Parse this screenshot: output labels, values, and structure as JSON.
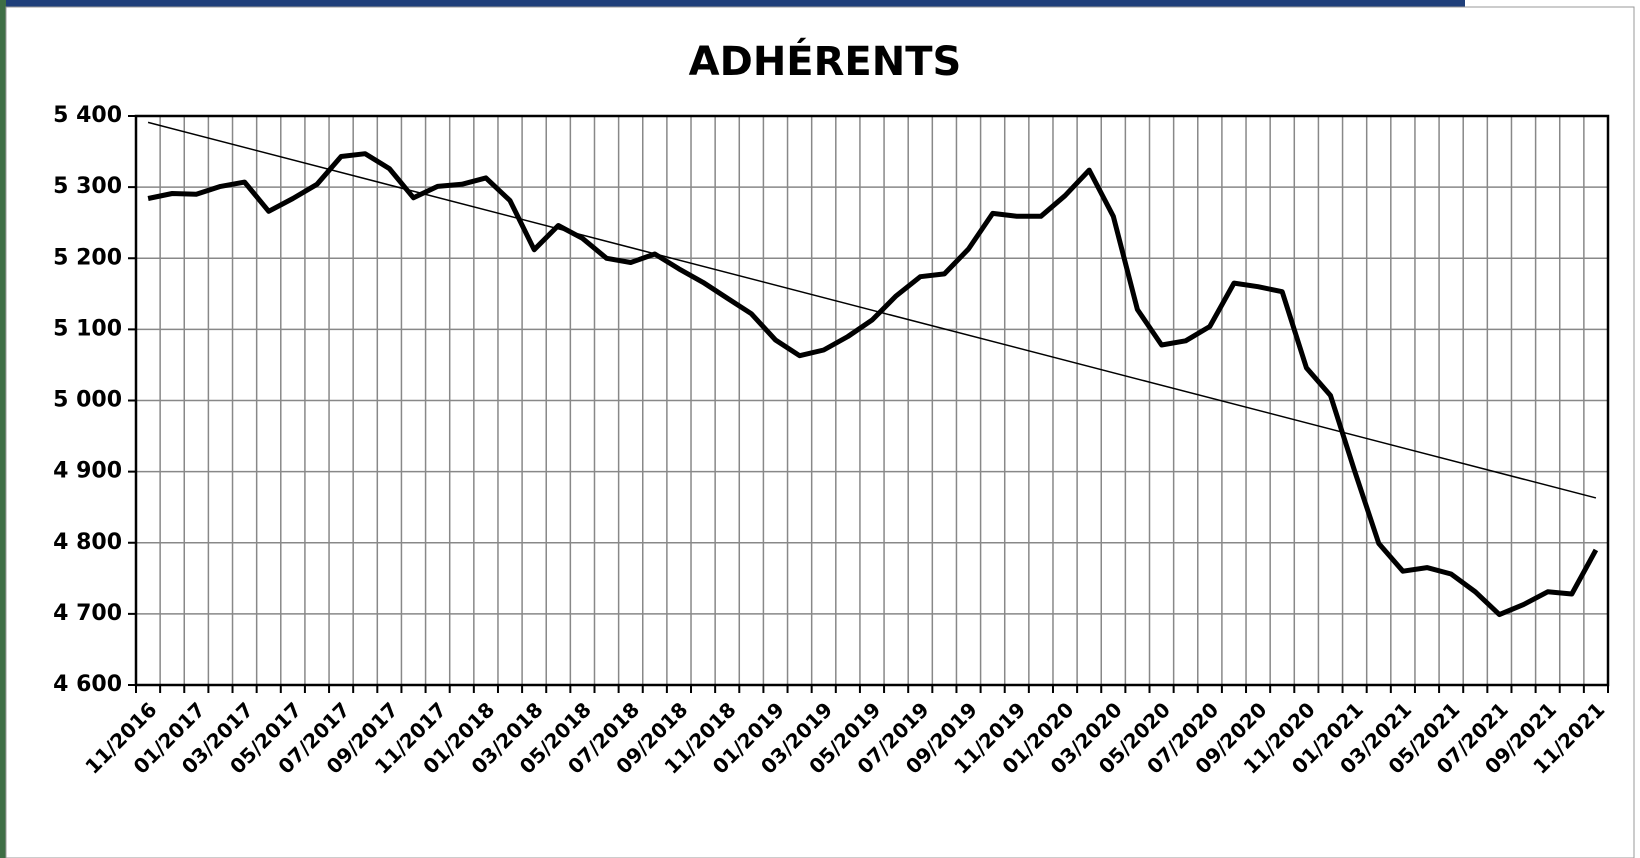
{
  "chart_data": {
    "type": "line",
    "title": "ADHÉRENTS",
    "categories": [
      "11/2016",
      null,
      "01/2017",
      null,
      "03/2017",
      null,
      "05/2017",
      null,
      "07/2017",
      null,
      "09/2017",
      null,
      "11/2017",
      null,
      "01/2018",
      null,
      "03/2018",
      null,
      "05/2018",
      null,
      "07/2018",
      null,
      "09/2018",
      null,
      "11/2018",
      null,
      "01/2019",
      null,
      "03/2019",
      null,
      "05/2019",
      null,
      "07/2019",
      null,
      "09/2019",
      null,
      "11/2019",
      null,
      "01/2020",
      null,
      "03/2020",
      null,
      "05/2020",
      null,
      "07/2020",
      null,
      "09/2020",
      null,
      "11/2020",
      null,
      "01/2021",
      null,
      "03/2021",
      null,
      "05/2021",
      null,
      "07/2021",
      null,
      "09/2021",
      null,
      "11/2021"
    ],
    "values": [
      5284,
      5291,
      5290,
      5301,
      5307,
      5266,
      5284,
      5304,
      5343,
      5347,
      5326,
      5285,
      5301,
      5304,
      5313,
      5281,
      5212,
      5246,
      5228,
      5200,
      5194,
      5206,
      5185,
      5166,
      5144,
      5122,
      5085,
      5063,
      5071,
      5090,
      5113,
      5147,
      5174,
      5178,
      5213,
      5263,
      5259,
      5259,
      5288,
      5324,
      5259,
      5128,
      5078,
      5084,
      5104,
      5165,
      5160,
      5153,
      5046,
      5007,
      4901,
      4799,
      4760,
      4765,
      4756,
      4731,
      4699,
      4713,
      4731,
      4728,
      4790
    ],
    "color": "#000000",
    "trendline": {
      "start": 5391,
      "end": 4863,
      "color": "#000000"
    },
    "ylim": [
      4600,
      5400
    ],
    "yticks": [
      {
        "value": 4600,
        "label": "4 600"
      },
      {
        "value": 4700,
        "label": "4 700"
      },
      {
        "value": 4800,
        "label": "4 800"
      },
      {
        "value": 4900,
        "label": "4 900"
      },
      {
        "value": 5000,
        "label": "5 000"
      },
      {
        "value": 5100,
        "label": "5 100"
      },
      {
        "value": 5200,
        "label": "5 200"
      },
      {
        "value": 5300,
        "label": "5 300"
      },
      {
        "value": 5400,
        "label": "5 400"
      }
    ],
    "grid": true
  }
}
